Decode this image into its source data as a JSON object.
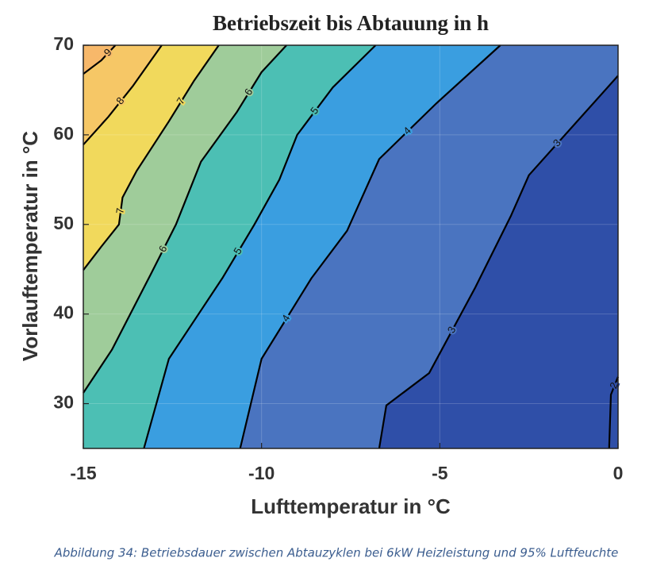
{
  "chart_data": {
    "type": "contour",
    "title": "Betriebszeit bis Abtauung in h",
    "xlabel": "Lufttemperatur in °C",
    "ylabel": "Vorlauftemperatur in °C",
    "xlim": [
      -15,
      0
    ],
    "xticks": [
      -15,
      -10,
      -5,
      0
    ],
    "ylim": [
      25,
      70
    ],
    "yticks": [
      30,
      40,
      50,
      60,
      70
    ],
    "grid": true,
    "line_color": "#000000",
    "base_color": "#2f4fa8",
    "contours": [
      {
        "level": 2,
        "color": "#2f4fa8",
        "x": [
          -0.25,
          -0.2,
          0
        ],
        "y": [
          25,
          31,
          33
        ]
      },
      {
        "level": 3,
        "color": "#4a74c0",
        "x": [
          -6.7,
          -6.5,
          -5.3,
          -4.0,
          -3.0,
          -2.5,
          -0.9,
          0
        ],
        "y": [
          25,
          29.8,
          33.4,
          43,
          51,
          55.5,
          62.6,
          66.6
        ]
      },
      {
        "level": 4,
        "color": "#3a9ee0",
        "x": [
          -10.6,
          -10,
          -8.6,
          -7.6,
          -6.7,
          -5.1,
          -3.3
        ],
        "y": [
          25,
          35,
          44,
          49.3,
          57.3,
          63.5,
          70
        ]
      },
      {
        "level": 5,
        "color": "#4cbfb4",
        "x": [
          -13.3,
          -12.6,
          -11.1,
          -10.2,
          -9.5,
          -9.0,
          -8.0,
          -6.8
        ],
        "y": [
          25,
          35,
          44,
          50,
          55,
          60,
          65.3,
          70
        ]
      },
      {
        "level": 6,
        "color": "#9fcc9a",
        "x": [
          -15,
          -14.2,
          -13.1,
          -12.4,
          -11.7,
          -10.7,
          -10,
          -9.3
        ],
        "y": [
          31.2,
          36,
          44.5,
          50,
          57,
          62.5,
          67,
          70
        ]
      },
      {
        "level": 7,
        "color": "#f1d95c",
        "x": [
          -15,
          -14.5,
          -14.0,
          -13.9,
          -13.5,
          -12.6,
          -11.9,
          -11.2
        ],
        "y": [
          44.9,
          47.5,
          50,
          53,
          56,
          61.5,
          66,
          70
        ]
      },
      {
        "level": 8,
        "color": "#f6c766",
        "x": [
          -15,
          -14.3,
          -13.6,
          -12.8
        ],
        "y": [
          58.9,
          62,
          65.5,
          70
        ]
      },
      {
        "level": 9,
        "color": "#f7b86a",
        "x": [
          -15,
          -14.5,
          -14.1
        ],
        "y": [
          66.8,
          68.3,
          70
        ]
      }
    ]
  },
  "caption": "Abbildung 34: Betriebsdauer zwischen Abtauzyklen bei 6kW Heizleistung und 95% Luftfeuchte"
}
